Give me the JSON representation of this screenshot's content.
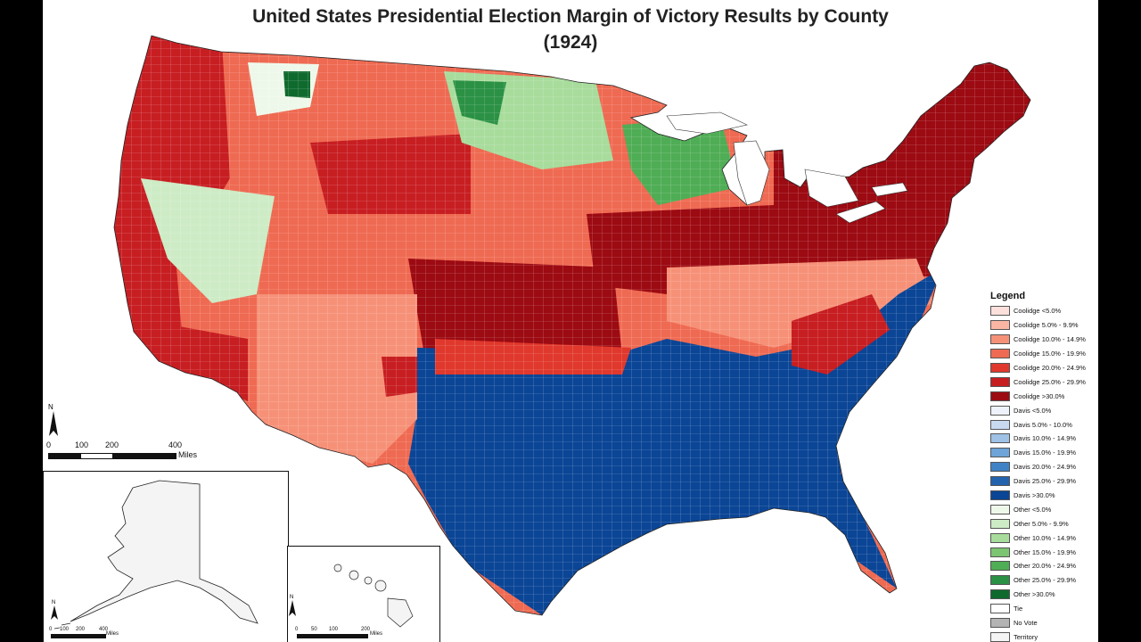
{
  "title_line1": "United States Presidential Election Margin of Victory Results by County",
  "title_line2": "(1924)",
  "legend": {
    "title": "Legend",
    "items": [
      {
        "label": "Coolidge <5.0%",
        "color": "#fde0dc"
      },
      {
        "label": "Coolidge 5.0% - 9.9%",
        "color": "#fbb6a3"
      },
      {
        "label": "Coolidge 10.0% - 14.9%",
        "color": "#f69178"
      },
      {
        "label": "Coolidge 15.0% - 19.9%",
        "color": "#ef6a52"
      },
      {
        "label": "Coolidge 20.0% - 24.9%",
        "color": "#e0382c"
      },
      {
        "label": "Coolidge 25.0% - 29.9%",
        "color": "#c71e22"
      },
      {
        "label": "Coolidge >30.0%",
        "color": "#9c0a12"
      },
      {
        "label": "Davis <5.0%",
        "color": "#eef3fb"
      },
      {
        "label": "Davis 5.0% - 10.0%",
        "color": "#c8daf0"
      },
      {
        "label": "Davis 10.0% - 14.9%",
        "color": "#9fc2e6"
      },
      {
        "label": "Davis 15.0% - 19.9%",
        "color": "#6ea4d8"
      },
      {
        "label": "Davis 20.0% - 24.9%",
        "color": "#3f83c6"
      },
      {
        "label": "Davis 25.0% - 29.9%",
        "color": "#2463ae"
      },
      {
        "label": "Davis >30.0%",
        "color": "#0b4596"
      },
      {
        "label": "Other <5.0%",
        "color": "#eef8ea"
      },
      {
        "label": "Other 5.0% - 9.9%",
        "color": "#cdebc5"
      },
      {
        "label": "Other 10.0% - 14.9%",
        "color": "#a8dc9c"
      },
      {
        "label": "Other 15.0% - 19.9%",
        "color": "#7cc573"
      },
      {
        "label": "Other 20.0% - 24.9%",
        "color": "#4fad55"
      },
      {
        "label": "Other 25.0% - 29.9%",
        "color": "#2b9145"
      },
      {
        "label": "Other >30.0%",
        "color": "#0f6a2e"
      },
      {
        "label": "Tie",
        "color": "#ffffff"
      },
      {
        "label": "No Vote",
        "color": "#b3b3b3"
      },
      {
        "label": "Territory",
        "color": "#f4f4f4"
      }
    ]
  },
  "main_scale": {
    "ticks": [
      "0",
      "100",
      "200",
      "400"
    ],
    "unit": "Miles"
  },
  "north_label": "N",
  "alaska_scale": {
    "ticks": [
      "0",
      "100",
      "200",
      "400"
    ],
    "unit": "Miles"
  },
  "hawaii_scale": {
    "ticks": [
      "0",
      "50",
      "100",
      "200"
    ],
    "unit": "Miles"
  }
}
